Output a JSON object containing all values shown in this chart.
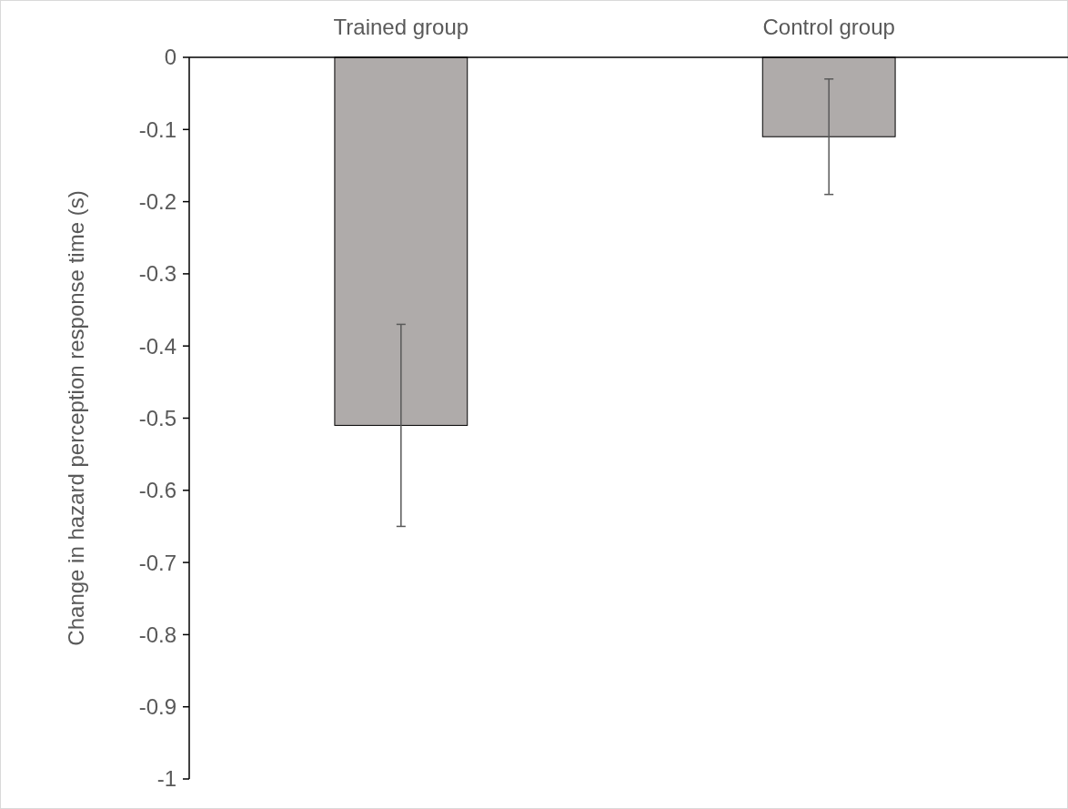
{
  "chart_data": {
    "type": "bar",
    "ylabel": "Change in hazard perception response time (s)",
    "categories": [
      "Trained group",
      "Control group"
    ],
    "values": [
      -0.51,
      -0.11
    ],
    "errors": [
      0.14,
      0.08
    ],
    "color": "#afabaa",
    "ylim": [
      -1,
      0
    ],
    "yticks": [
      0,
      -0.1,
      -0.2,
      -0.3,
      -0.4,
      -0.5,
      -0.6,
      -0.7,
      -0.8,
      -0.9,
      -1
    ],
    "grid": false
  }
}
